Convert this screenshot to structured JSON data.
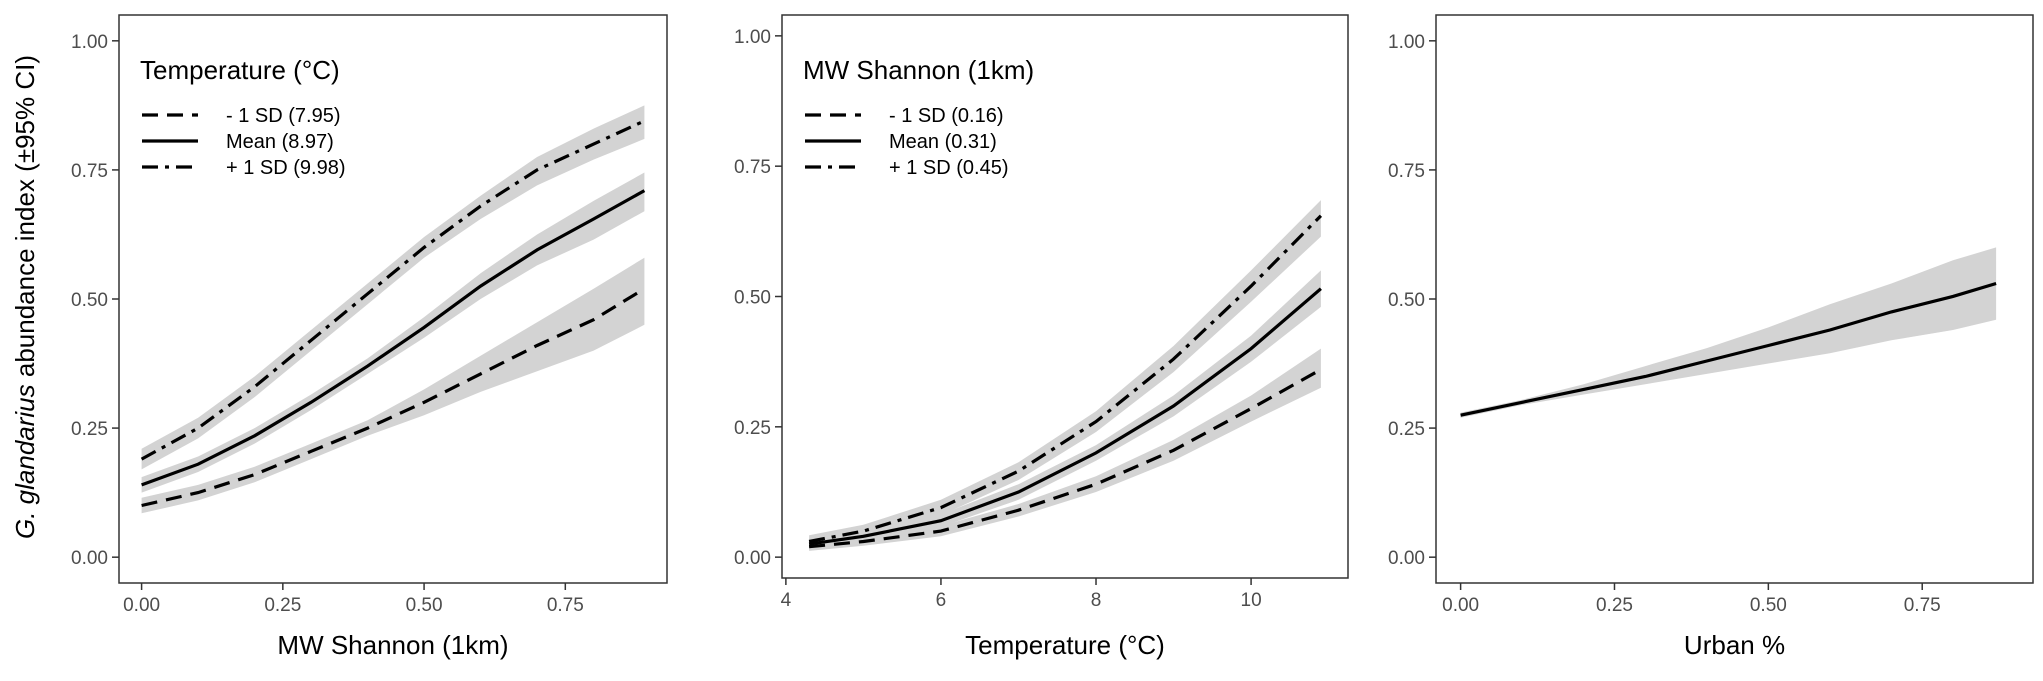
{
  "y_axis_title_italic": "G. glandarius",
  "y_axis_title_rest": " abundance index (±95% CI)",
  "colors": {
    "band": "#d3d3d3",
    "line": "#000000",
    "frame": "#333333",
    "tick_text": "#4d4d4d"
  },
  "chart_data": [
    {
      "type": "line",
      "xlabel": "MW Shannon (1km)",
      "ylabel": "G. glandarius abundance index (±95% CI)",
      "xlim": [
        -0.04,
        0.93
      ],
      "ylim": [
        -0.05,
        1.05
      ],
      "xticks": [
        0,
        0.25,
        0.5,
        0.75
      ],
      "xtick_labels": [
        "0.00",
        "0.25",
        "0.50",
        "0.75"
      ],
      "yticks": [
        0,
        0.25,
        0.5,
        0.75,
        1
      ],
      "ytick_labels": [
        "0.00",
        "0.25",
        "0.50",
        "0.75",
        "1.00"
      ],
      "legend": {
        "title": "Temperature (°C)",
        "placement": "top-left",
        "entries": [
          "- 1 SD (7.95)",
          "Mean (8.97)",
          "+ 1 SD (9.98)"
        ]
      },
      "series": [
        {
          "name": "- 1 SD (7.95)",
          "dash": "dashed",
          "x": [
            0,
            0.1,
            0.2,
            0.3,
            0.4,
            0.5,
            0.6,
            0.7,
            0.8,
            0.89
          ],
          "y": [
            0.1,
            0.125,
            0.16,
            0.205,
            0.25,
            0.3,
            0.355,
            0.41,
            0.46,
            0.52
          ],
          "lower": [
            0.085,
            0.11,
            0.145,
            0.19,
            0.235,
            0.275,
            0.32,
            0.36,
            0.4,
            0.45
          ],
          "upper": [
            0.115,
            0.14,
            0.175,
            0.22,
            0.265,
            0.325,
            0.39,
            0.455,
            0.52,
            0.58
          ]
        },
        {
          "name": "Mean (8.97)",
          "dash": "solid",
          "x": [
            0,
            0.1,
            0.2,
            0.3,
            0.4,
            0.5,
            0.6,
            0.7,
            0.8,
            0.89
          ],
          "y": [
            0.14,
            0.18,
            0.235,
            0.3,
            0.37,
            0.445,
            0.525,
            0.595,
            0.655,
            0.71
          ],
          "lower": [
            0.125,
            0.165,
            0.22,
            0.285,
            0.355,
            0.425,
            0.5,
            0.565,
            0.615,
            0.67
          ],
          "upper": [
            0.155,
            0.195,
            0.25,
            0.315,
            0.385,
            0.465,
            0.55,
            0.625,
            0.69,
            0.745
          ]
        },
        {
          "name": "+ 1 SD (9.98)",
          "dash": "dotdash",
          "x": [
            0,
            0.1,
            0.2,
            0.3,
            0.4,
            0.5,
            0.6,
            0.7,
            0.8,
            0.89
          ],
          "y": [
            0.19,
            0.25,
            0.33,
            0.42,
            0.51,
            0.6,
            0.68,
            0.75,
            0.8,
            0.845
          ],
          "lower": [
            0.17,
            0.23,
            0.31,
            0.4,
            0.49,
            0.58,
            0.655,
            0.72,
            0.77,
            0.81
          ],
          "upper": [
            0.21,
            0.27,
            0.35,
            0.44,
            0.53,
            0.62,
            0.7,
            0.775,
            0.83,
            0.875
          ]
        }
      ]
    },
    {
      "type": "line",
      "xlabel": "Temperature (°C)",
      "ylabel": "",
      "xlim": [
        3.95,
        11.25
      ],
      "ylim": [
        -0.04,
        1.04
      ],
      "xticks": [
        4,
        6,
        8,
        10
      ],
      "xtick_labels": [
        "4",
        "6",
        "8",
        "10"
      ],
      "yticks": [
        0,
        0.25,
        0.5,
        0.75,
        1
      ],
      "ytick_labels": [
        "0.00",
        "0.25",
        "0.50",
        "0.75",
        "1.00"
      ],
      "legend": {
        "title": "MW Shannon (1km)",
        "placement": "top-left",
        "entries": [
          "- 1 SD (0.16)",
          "Mean (0.31)",
          "+ 1 SD (0.45)"
        ]
      },
      "series": [
        {
          "name": "- 1 SD (0.16)",
          "dash": "dashed",
          "x": [
            4.3,
            5,
            6,
            7,
            8,
            9,
            10,
            10.9
          ],
          "y": [
            0.02,
            0.03,
            0.05,
            0.09,
            0.14,
            0.205,
            0.285,
            0.36
          ],
          "lower": [
            0.012,
            0.022,
            0.04,
            0.078,
            0.125,
            0.185,
            0.26,
            0.325
          ],
          "upper": [
            0.028,
            0.038,
            0.06,
            0.102,
            0.155,
            0.225,
            0.31,
            0.4
          ]
        },
        {
          "name": "Mean (0.31)",
          "dash": "solid",
          "x": [
            4.3,
            5,
            6,
            7,
            8,
            9,
            10,
            10.9
          ],
          "y": [
            0.025,
            0.04,
            0.07,
            0.125,
            0.2,
            0.29,
            0.4,
            0.515
          ],
          "lower": [
            0.015,
            0.03,
            0.058,
            0.11,
            0.185,
            0.27,
            0.375,
            0.48
          ],
          "upper": [
            0.035,
            0.05,
            0.082,
            0.14,
            0.215,
            0.31,
            0.425,
            0.55
          ]
        },
        {
          "name": "+ 1 SD (0.45)",
          "dash": "dotdash",
          "x": [
            4.3,
            5,
            6,
            7,
            8,
            9,
            10,
            10.9
          ],
          "y": [
            0.03,
            0.05,
            0.095,
            0.165,
            0.26,
            0.38,
            0.52,
            0.655
          ],
          "lower": [
            0.018,
            0.038,
            0.08,
            0.148,
            0.24,
            0.355,
            0.49,
            0.615
          ],
          "upper": [
            0.042,
            0.062,
            0.11,
            0.182,
            0.28,
            0.405,
            0.55,
            0.685
          ]
        }
      ]
    },
    {
      "type": "line",
      "xlabel": "Urban %",
      "ylabel": "",
      "xlim": [
        -0.04,
        0.93
      ],
      "ylim": [
        -0.05,
        1.05
      ],
      "xticks": [
        0,
        0.25,
        0.5,
        0.75
      ],
      "xtick_labels": [
        "0.00",
        "0.25",
        "0.50",
        "0.75"
      ],
      "yticks": [
        0,
        0.25,
        0.5,
        0.75,
        1
      ],
      "ytick_labels": [
        "0.00",
        "0.25",
        "0.50",
        "0.75",
        "1.00"
      ],
      "series": [
        {
          "dash": "solid",
          "x": [
            0,
            0.1,
            0.2,
            0.3,
            0.4,
            0.5,
            0.6,
            0.7,
            0.8,
            0.87
          ],
          "y": [
            0.275,
            0.3,
            0.325,
            0.35,
            0.38,
            0.41,
            0.44,
            0.475,
            0.505,
            0.53
          ],
          "lower": [
            0.27,
            0.295,
            0.315,
            0.335,
            0.355,
            0.375,
            0.395,
            0.42,
            0.44,
            0.46
          ],
          "upper": [
            0.28,
            0.305,
            0.335,
            0.37,
            0.405,
            0.445,
            0.49,
            0.53,
            0.575,
            0.6
          ]
        }
      ]
    }
  ]
}
